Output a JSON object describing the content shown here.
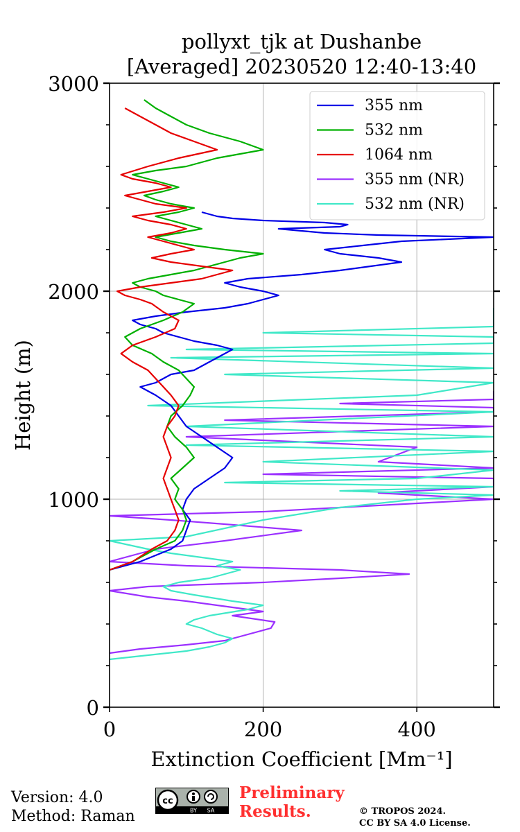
{
  "chart_data": {
    "type": "line",
    "title": "pollyxt_tjk at Dushanbe",
    "subtitle": "[Averaged] 20230520 12:40-13:40",
    "xlabel": "Extinction Coefficient [Mm⁻¹]",
    "ylabel": "Height (m)",
    "xlim": [
      0,
      500
    ],
    "ylim": [
      0,
      3000
    ],
    "xticks": [
      0,
      200,
      400
    ],
    "yticks": [
      0,
      1000,
      2000,
      3000
    ],
    "grid": true,
    "legend_position": "top-right",
    "series": [
      {
        "name": "355 nm",
        "color": "#0000e6",
        "x": [
          0,
          40,
          80,
          95,
          100,
          105,
          95,
          100,
          110,
          130,
          150,
          160,
          140,
          120,
          100,
          90,
          80,
          60,
          40,
          60,
          80,
          110,
          130,
          150,
          160,
          140,
          110,
          90,
          70,
          60,
          40,
          30,
          60,
          100,
          150,
          180,
          200,
          220,
          200,
          170,
          150,
          180,
          250,
          300,
          340,
          380,
          350,
          300,
          280,
          330,
          380,
          500,
          350,
          280,
          250,
          220,
          300,
          310,
          280,
          200,
          160,
          140,
          120
        ],
        "y": [
          660,
          700,
          760,
          800,
          850,
          900,
          950,
          1000,
          1050,
          1100,
          1150,
          1200,
          1250,
          1300,
          1350,
          1400,
          1450,
          1500,
          1540,
          1560,
          1600,
          1620,
          1660,
          1700,
          1720,
          1740,
          1760,
          1780,
          1800,
          1820,
          1840,
          1860,
          1880,
          1900,
          1920,
          1940,
          1960,
          1980,
          2000,
          2020,
          2040,
          2060,
          2080,
          2100,
          2120,
          2140,
          2160,
          2180,
          2200,
          2220,
          2240,
          2260,
          2270,
          2280,
          2290,
          2300,
          2310,
          2320,
          2330,
          2340,
          2350,
          2360,
          2380
        ]
      },
      {
        "name": "532 nm",
        "color": "#00b000",
        "x": [
          0,
          30,
          60,
          85,
          95,
          100,
          95,
          85,
          90,
          80,
          95,
          110,
          100,
          85,
          75,
          80,
          95,
          105,
          110,
          100,
          90,
          70,
          55,
          30,
          20,
          40,
          70,
          95,
          110,
          90,
          70,
          60,
          40,
          30,
          50,
          80,
          110,
          130,
          150,
          170,
          200,
          150,
          110,
          80,
          60,
          90,
          120,
          100,
          80,
          60,
          90,
          110,
          80,
          60,
          45,
          70,
          90,
          70,
          50,
          30,
          60,
          100,
          140,
          200,
          170,
          130,
          100,
          80,
          60,
          45
        ],
        "y": [
          660,
          700,
          760,
          800,
          850,
          900,
          950,
          1000,
          1050,
          1100,
          1150,
          1200,
          1250,
          1300,
          1350,
          1400,
          1450,
          1500,
          1540,
          1580,
          1620,
          1660,
          1700,
          1740,
          1780,
          1820,
          1860,
          1900,
          1940,
          1960,
          1980,
          2000,
          2020,
          2040,
          2060,
          2080,
          2100,
          2120,
          2140,
          2160,
          2180,
          2200,
          2220,
          2240,
          2260,
          2280,
          2300,
          2320,
          2340,
          2360,
          2380,
          2400,
          2420,
          2440,
          2460,
          2480,
          2500,
          2520,
          2540,
          2560,
          2580,
          2600,
          2640,
          2680,
          2720,
          2760,
          2800,
          2840,
          2880,
          2920
        ]
      },
      {
        "name": "1064 nm",
        "color": "#e60000",
        "x": [
          0,
          30,
          55,
          75,
          85,
          90,
          85,
          80,
          75,
          70,
          75,
          80,
          75,
          70,
          75,
          85,
          90,
          80,
          70,
          60,
          50,
          30,
          15,
          30,
          60,
          85,
          90,
          70,
          55,
          40,
          20,
          10,
          40,
          80,
          120,
          140,
          160,
          120,
          80,
          55,
          80,
          110,
          90,
          70,
          50,
          80,
          100,
          80,
          50,
          30,
          70,
          100,
          60,
          40,
          20,
          50,
          80,
          60,
          30,
          15,
          50,
          90,
          140,
          110,
          80,
          60,
          40,
          20
        ],
        "y": [
          660,
          700,
          760,
          800,
          850,
          900,
          950,
          1000,
          1050,
          1100,
          1150,
          1200,
          1250,
          1300,
          1350,
          1400,
          1450,
          1500,
          1540,
          1580,
          1620,
          1660,
          1700,
          1740,
          1780,
          1820,
          1860,
          1900,
          1940,
          1960,
          1980,
          2000,
          2020,
          2040,
          2060,
          2080,
          2100,
          2120,
          2140,
          2160,
          2180,
          2200,
          2220,
          2240,
          2260,
          2280,
          2300,
          2320,
          2340,
          2360,
          2380,
          2400,
          2420,
          2440,
          2460,
          2480,
          2500,
          2520,
          2540,
          2560,
          2600,
          2640,
          2680,
          2720,
          2760,
          2800,
          2840,
          2880
        ]
      },
      {
        "name": "355 nm (NR)",
        "color": "#9b30ff",
        "x": [
          0,
          40,
          100,
          150,
          170,
          210,
          215,
          160,
          200,
          140,
          100,
          50,
          0,
          50,
          200,
          300,
          390,
          300,
          100,
          0,
          60,
          150,
          250,
          150,
          80,
          0,
          200,
          300,
          400,
          500,
          350,
          500,
          500,
          200,
          500,
          350,
          400,
          100,
          500,
          150,
          500,
          500,
          300,
          500,
          500
        ],
        "y": [
          260,
          280,
          300,
          320,
          340,
          380,
          410,
          440,
          460,
          490,
          510,
          530,
          560,
          580,
          600,
          620,
          640,
          660,
          680,
          700,
          760,
          800,
          850,
          880,
          900,
          920,
          940,
          960,
          980,
          1000,
          1030,
          1060,
          1100,
          1120,
          1150,
          1180,
          1250,
          1300,
          1350,
          1380,
          1420,
          1440,
          1460,
          1480,
          1520
        ]
      },
      {
        "name": "532 nm (NR)",
        "color": "#40e8c8",
        "x": [
          0,
          50,
          100,
          130,
          150,
          160,
          140,
          120,
          100,
          110,
          130,
          180,
          200,
          160,
          110,
          80,
          70,
          90,
          130,
          150,
          170,
          140,
          160,
          120,
          80,
          50,
          0,
          100,
          200,
          300,
          400,
          500,
          300,
          500,
          150,
          400,
          500,
          200,
          500,
          100,
          500,
          100,
          500,
          50,
          400,
          500,
          150,
          500,
          80,
          500,
          100,
          500,
          500,
          200,
          500,
          500,
          500,
          500
        ],
        "y": [
          230,
          250,
          270,
          290,
          310,
          330,
          350,
          380,
          400,
          420,
          440,
          470,
          490,
          510,
          540,
          560,
          580,
          600,
          620,
          640,
          660,
          680,
          700,
          720,
          740,
          760,
          800,
          820,
          900,
          960,
          1000,
          1020,
          1040,
          1060,
          1080,
          1100,
          1140,
          1180,
          1230,
          1260,
          1300,
          1350,
          1420,
          1450,
          1500,
          1560,
          1600,
          1630,
          1680,
          1700,
          1720,
          1750,
          1780,
          1800,
          1830,
          1860,
          1880,
          1920
        ]
      }
    ]
  },
  "footer": {
    "version": "Version: 4.0",
    "method": "Method: Raman",
    "preliminary_line1": "Preliminary",
    "preliminary_line2": "Results.",
    "copyright_line1": "© TROPOS 2024.",
    "copyright_line2": "CC BY SA 4.0 License.",
    "cc_badge": {
      "cc": "cc",
      "by": "BY",
      "sa": "SA"
    }
  },
  "icons": {
    "license_badge": "cc-by-sa-badge"
  }
}
